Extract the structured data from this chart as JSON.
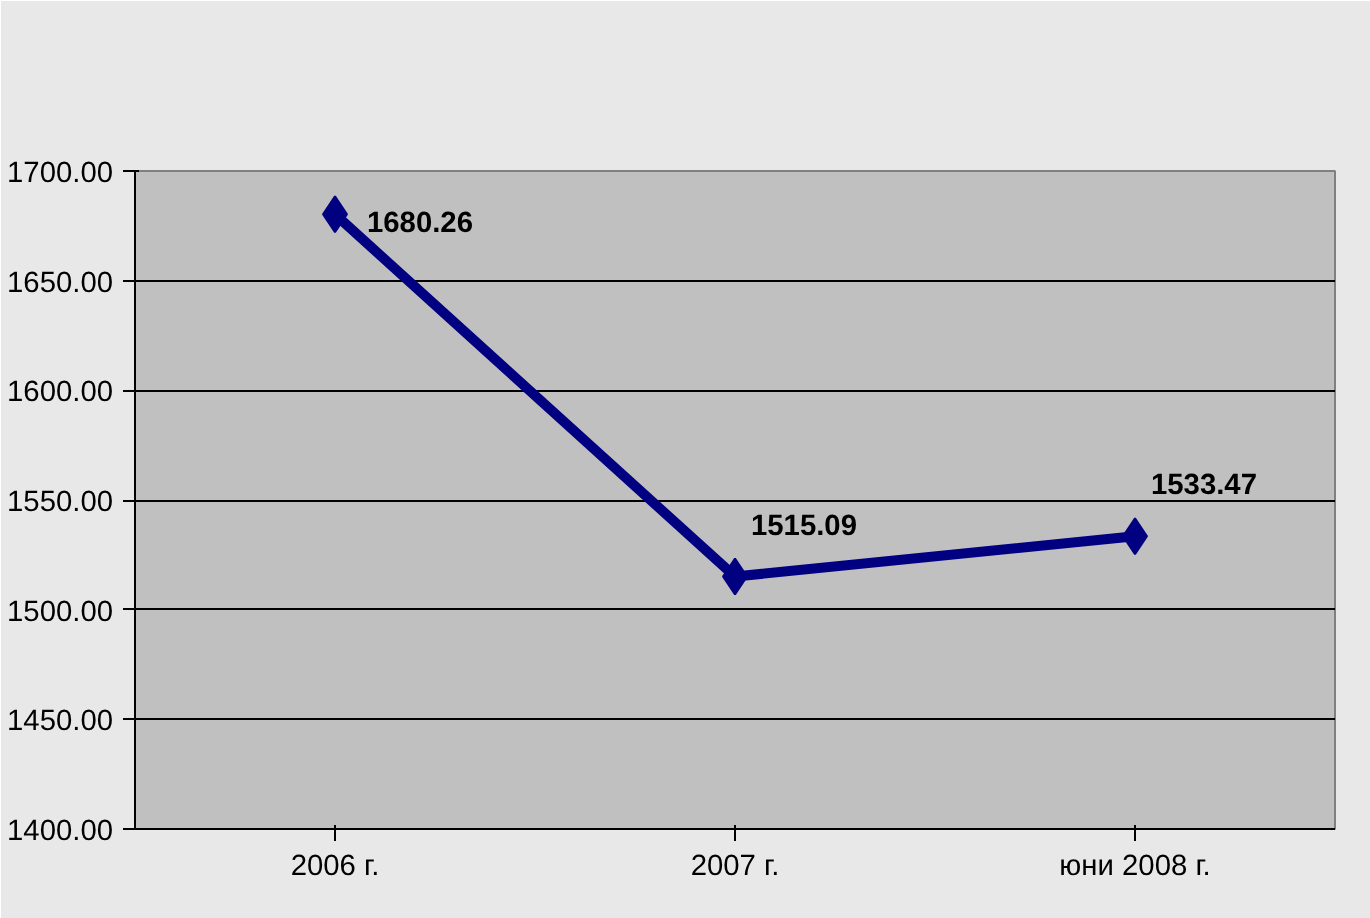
{
  "chart_data": {
    "type": "line",
    "categories": [
      "2006 г.",
      "2007 г.",
      "юни 2008 г."
    ],
    "series": [
      {
        "color": "#000080",
        "values": [
          1680.26,
          1515.09,
          1533.47
        ]
      }
    ],
    "ylim": [
      1400,
      1700
    ],
    "yticks": [
      {
        "value": 1400,
        "label": "1400.00"
      },
      {
        "value": 1450,
        "label": "1450.00"
      },
      {
        "value": 1500,
        "label": "1500.00"
      },
      {
        "value": 1550,
        "label": "1550.00"
      },
      {
        "value": 1600,
        "label": "1600.00"
      },
      {
        "value": 1650,
        "label": "1650.00"
      },
      {
        "value": 1700,
        "label": "1700.00"
      }
    ],
    "grid": "y",
    "marker": "diamond",
    "data_labels": true
  }
}
